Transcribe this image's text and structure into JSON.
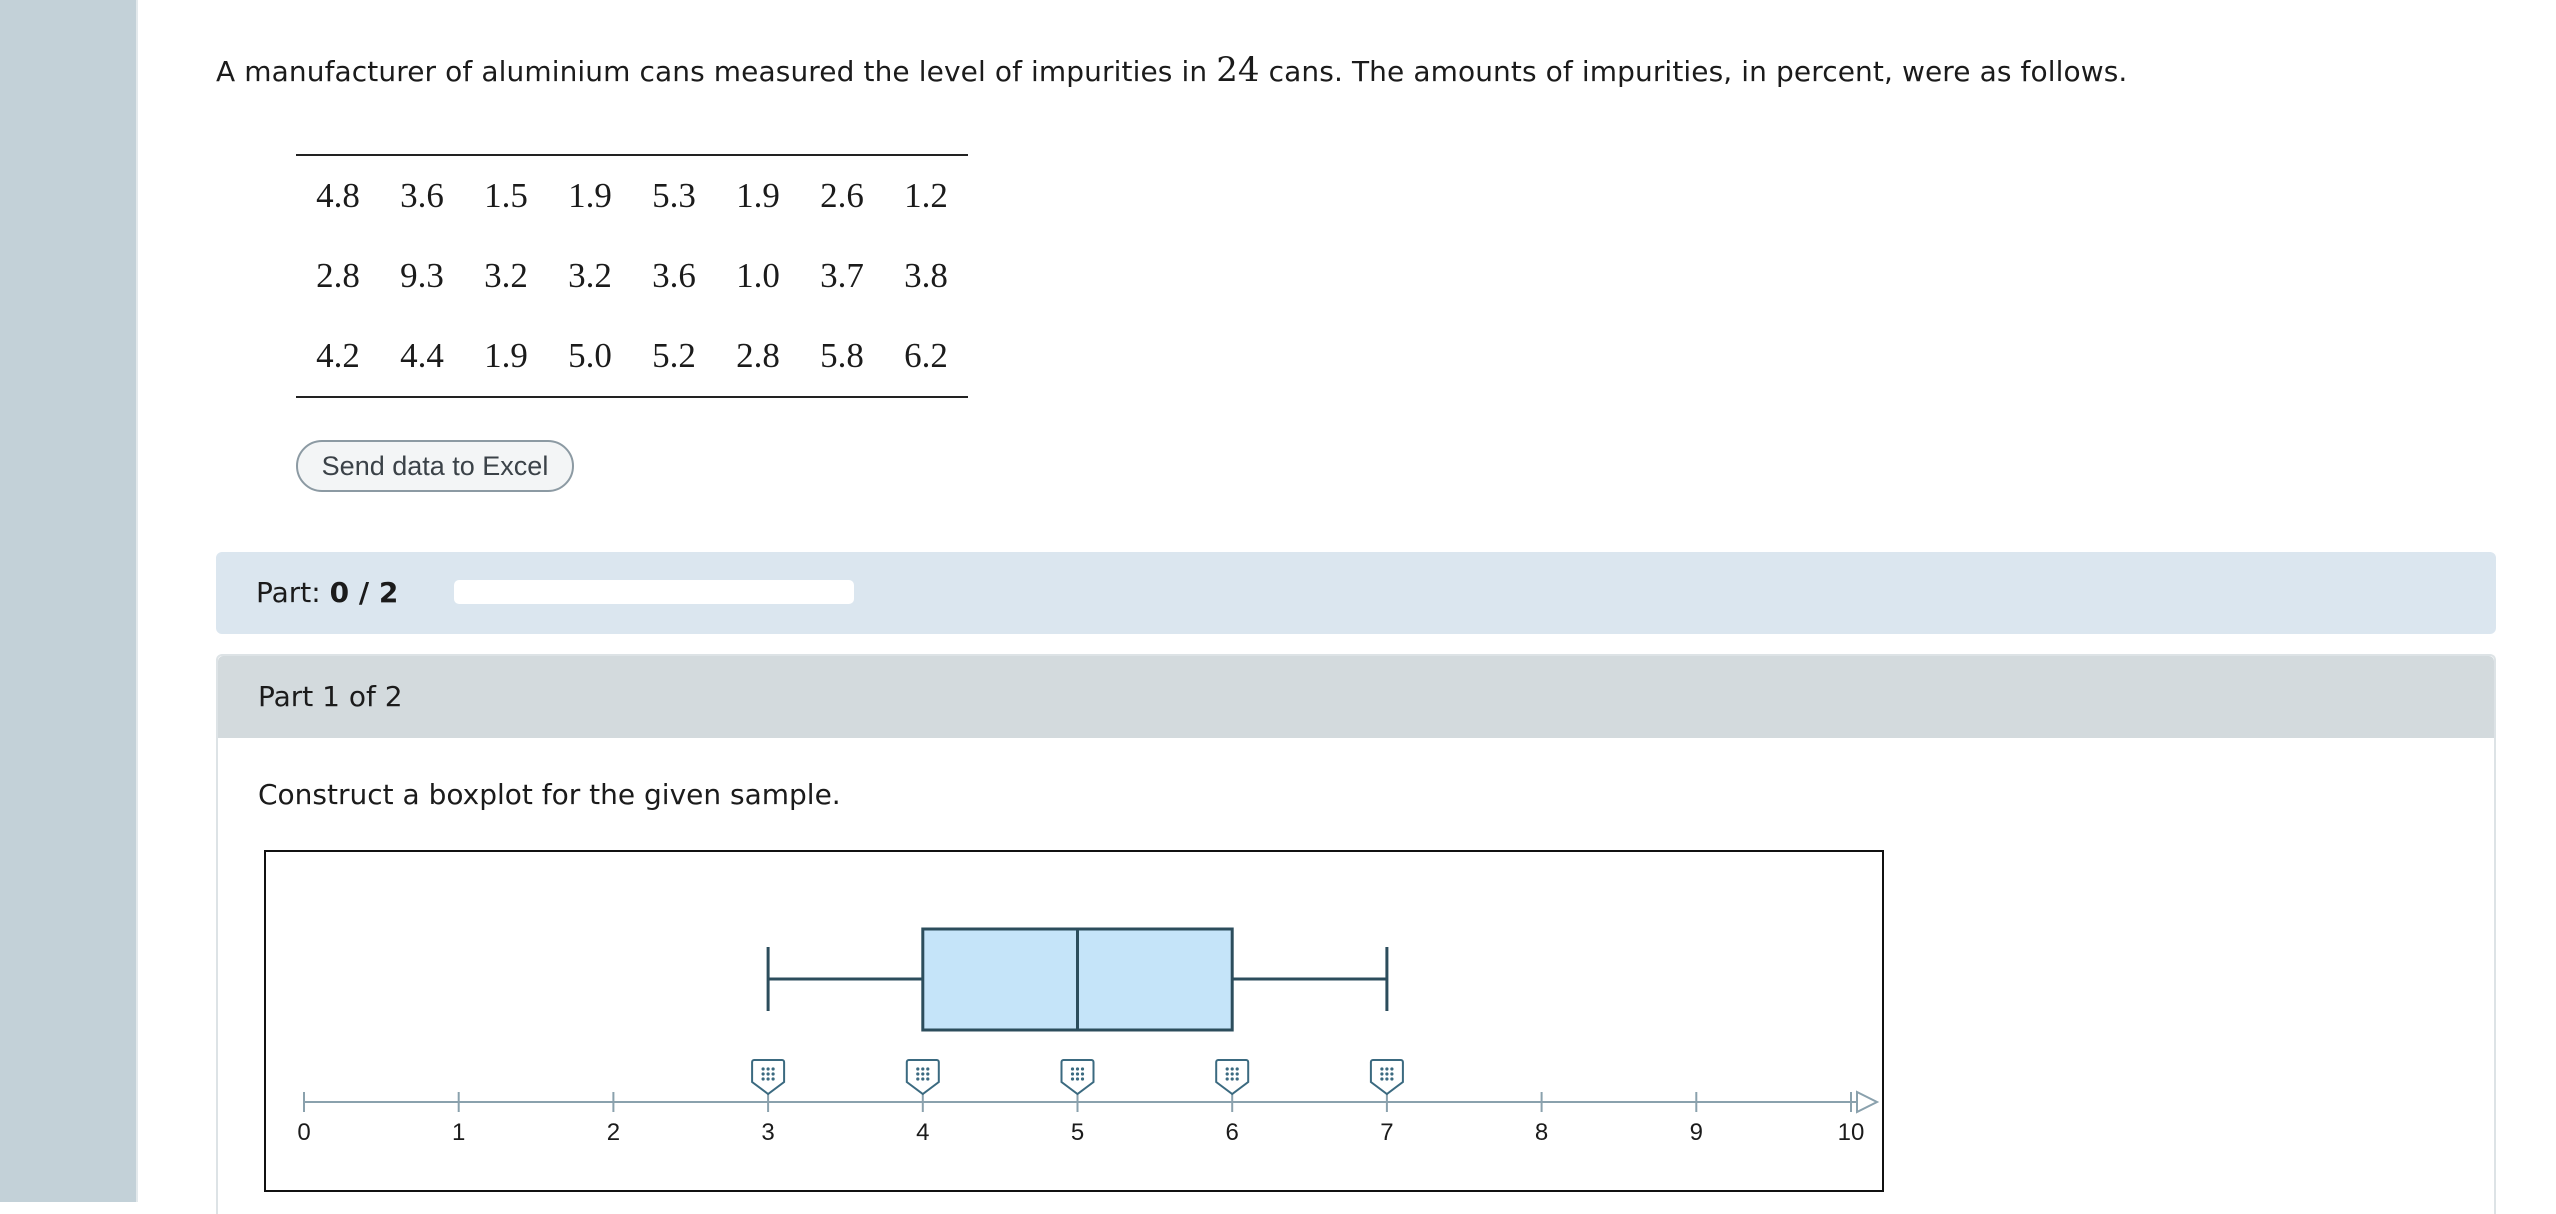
{
  "intro": {
    "before": "A manufacturer of aluminium cans measured the level of impurities in ",
    "count": "24",
    "after": " cans. The amounts of impurities, in percent, were as follows."
  },
  "table": {
    "rows": [
      [
        "4.8",
        "3.6",
        "1.5",
        "1.9",
        "5.3",
        "1.9",
        "2.6",
        "1.2"
      ],
      [
        "2.8",
        "9.3",
        "3.2",
        "3.2",
        "3.6",
        "1.0",
        "3.7",
        "3.8"
      ],
      [
        "4.2",
        "4.4",
        "1.9",
        "5.0",
        "5.2",
        "2.8",
        "5.8",
        "6.2"
      ]
    ]
  },
  "excel_button": "Send data to Excel",
  "progress": {
    "prefix": "Part: ",
    "value": "0 / 2",
    "fraction": 0
  },
  "part": {
    "title": "Part 1 of 2",
    "instruction": "Construct a boxplot for the given sample."
  },
  "colors": {
    "box_fill": "#c5e4f9",
    "box_stroke": "#2c4d5c",
    "axis": "#8aa1ad",
    "handle_stroke": "#3b6a80"
  },
  "icons": {
    "handle": "drag-dots-icon",
    "axis_end": "arrow-right-icon"
  },
  "chart_data": {
    "type": "boxplot",
    "axis": {
      "min": 0,
      "max": 10,
      "ticks": [
        "0",
        "1",
        "2",
        "3",
        "4",
        "5",
        "6",
        "7",
        "8",
        "9",
        "10"
      ]
    },
    "boxplot": {
      "min": 3,
      "q1": 4,
      "median": 5,
      "q3": 6,
      "max": 7
    },
    "handles": [
      3,
      4,
      5,
      6,
      7
    ]
  }
}
